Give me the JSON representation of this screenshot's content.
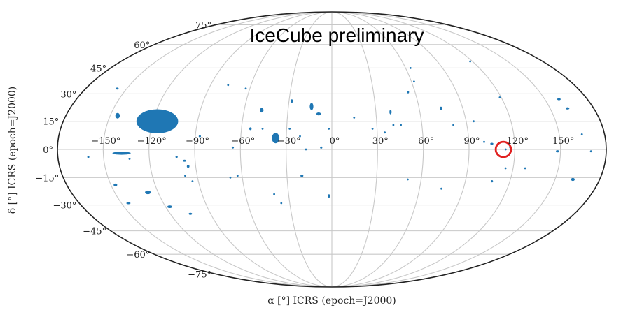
{
  "chart_data": {
    "type": "scatter",
    "projection": "mollweide",
    "title": "IceCube preliminary",
    "xlabel": "α [°] ICRS (epoch=J2000)",
    "ylabel": "δ [°] ICRS (epoch=J2000)",
    "xlim": [
      -180,
      180
    ],
    "ylim": [
      -90,
      90
    ],
    "grid": true,
    "x_ticks": [
      -150,
      -120,
      -90,
      -60,
      -30,
      0,
      30,
      60,
      90,
      120,
      150
    ],
    "y_ticks": [
      -75,
      -60,
      -45,
      -30,
      -15,
      0,
      15,
      30,
      45,
      60,
      75
    ],
    "x_tick_labels": [
      "−150°",
      "−120°",
      "−90°",
      "−60°",
      "−30°",
      "0°",
      "30°",
      "60°",
      "90°",
      "120°",
      "150°"
    ],
    "y_tick_labels": [
      "−75°",
      "−60°",
      "−45°",
      "−30°",
      "−15°",
      "0°",
      "15°",
      "30°",
      "45°",
      "60°",
      "75°"
    ],
    "colors": {
      "region": "#1f77b4",
      "highlight": "#e02020",
      "grid": "#c8c8c8",
      "frame": "#222222"
    },
    "regions": [
      {
        "ra": -117,
        "dec": 15,
        "w": 28,
        "h": 13
      },
      {
        "ra": -145,
        "dec": 18,
        "w": 3,
        "h": 3
      },
      {
        "ra": -138,
        "dec": -2,
        "w": 12,
        "h": 1.6
      },
      {
        "ra": -157,
        "dec": 33,
        "w": 2,
        "h": 1
      },
      {
        "ra": -160,
        "dec": -4,
        "w": 1.4,
        "h": 1.2
      },
      {
        "ra": -147,
        "dec": -19,
        "w": 2.5,
        "h": 1.5
      },
      {
        "ra": -145,
        "dec": -29,
        "w": 3,
        "h": 1.2
      },
      {
        "ra": -127,
        "dec": -23,
        "w": 4,
        "h": 2
      },
      {
        "ra": -117,
        "dec": -31,
        "w": 3.5,
        "h": 1.5
      },
      {
        "ra": -105,
        "dec": -35,
        "w": 2.5,
        "h": 1
      },
      {
        "ra": -133,
        "dec": -5,
        "w": 1.2,
        "h": 1
      },
      {
        "ra": -102,
        "dec": -4,
        "w": 1.5,
        "h": 1
      },
      {
        "ra": -97,
        "dec": -6,
        "w": 2,
        "h": 1
      },
      {
        "ra": -95,
        "dec": -9,
        "w": 1.8,
        "h": 1.5
      },
      {
        "ra": -98,
        "dec": -14,
        "w": 1.2,
        "h": 0.8
      },
      {
        "ra": -94,
        "dec": -17,
        "w": 1.2,
        "h": 1
      },
      {
        "ra": -87,
        "dec": 7,
        "w": 1.5,
        "h": 1
      },
      {
        "ra": -65,
        "dec": 1,
        "w": 1.5,
        "h": 0.8
      },
      {
        "ra": -77,
        "dec": 35,
        "w": 1,
        "h": 0.8
      },
      {
        "ra": -63,
        "dec": 33,
        "w": 1,
        "h": 0.8
      },
      {
        "ra": -48,
        "dec": 21,
        "w": 2.5,
        "h": 2.5
      },
      {
        "ra": -54,
        "dec": 11,
        "w": 1.6,
        "h": 1.5
      },
      {
        "ra": -46,
        "dec": 11,
        "w": 1,
        "h": 1
      },
      {
        "ra": -37,
        "dec": 6,
        "w": 5,
        "h": 5.5
      },
      {
        "ra": -28,
        "dec": 26,
        "w": 1.5,
        "h": 2
      },
      {
        "ra": -28,
        "dec": 11,
        "w": 1,
        "h": 0.8
      },
      {
        "ra": -21,
        "dec": 7,
        "w": 1,
        "h": 0.8
      },
      {
        "ra": -14,
        "dec": 23,
        "w": 2.5,
        "h": 4
      },
      {
        "ra": -9,
        "dec": 19,
        "w": 3,
        "h": 1.6
      },
      {
        "ra": -7,
        "dec": 1,
        "w": 1.5,
        "h": 1.2
      },
      {
        "ra": -17,
        "dec": 0,
        "w": 0.8,
        "h": 0.8
      },
      {
        "ra": -20,
        "dec": -14,
        "w": 2,
        "h": 1.2
      },
      {
        "ra": -36,
        "dec": -29,
        "w": 0.8,
        "h": 0.8
      },
      {
        "ra": -40,
        "dec": -24,
        "w": 0.8,
        "h": 0.8
      },
      {
        "ra": -63,
        "dec": -14,
        "w": 1.2,
        "h": 0.8
      },
      {
        "ra": -2,
        "dec": -25,
        "w": 1.5,
        "h": 2
      },
      {
        "ra": 15,
        "dec": 17,
        "w": 0.8,
        "h": 0.8
      },
      {
        "ra": 27,
        "dec": 11,
        "w": 1,
        "h": 0.8
      },
      {
        "ra": 35,
        "dec": 9,
        "w": 0.8,
        "h": 0.8
      },
      {
        "ra": 40,
        "dec": 20,
        "w": 1.5,
        "h": 2.5
      },
      {
        "ra": 41,
        "dec": 13,
        "w": 1,
        "h": 0.8
      },
      {
        "ra": 46,
        "dec": 13,
        "w": 1.2,
        "h": 0.8
      },
      {
        "ra": 55,
        "dec": 31,
        "w": 1,
        "h": 1.5
      },
      {
        "ra": 62,
        "dec": 37,
        "w": 0.8,
        "h": 0.8
      },
      {
        "ra": 75,
        "dec": 22,
        "w": 1.8,
        "h": 1.8
      },
      {
        "ra": 81,
        "dec": 13,
        "w": 0.8,
        "h": 0.8
      },
      {
        "ra": 95,
        "dec": 15,
        "w": 0.8,
        "h": 1
      },
      {
        "ra": 105,
        "dec": 3,
        "w": 2,
        "h": 0.8
      },
      {
        "ra": 100,
        "dec": 4,
        "w": 0.8,
        "h": 0.8
      },
      {
        "ra": 114,
        "dec": 0,
        "w": 1.2,
        "h": 1
      },
      {
        "ra": 117,
        "dec": 1,
        "w": 0.6,
        "h": 0.6
      },
      {
        "ra": 115,
        "dec": -10,
        "w": 0.5,
        "h": 0.5
      },
      {
        "ra": 108,
        "dec": -17,
        "w": 1.2,
        "h": 1.2
      },
      {
        "ra": 128,
        "dec": -10,
        "w": 0.5,
        "h": 0.5
      },
      {
        "ra": 119,
        "dec": 28,
        "w": 0.8,
        "h": 0.8
      },
      {
        "ra": 118,
        "dec": 49,
        "w": 0.8,
        "h": 0.5
      },
      {
        "ra": 51,
        "dec": -16,
        "w": 1.2,
        "h": 0.8
      },
      {
        "ra": 75,
        "dec": -21,
        "w": 1,
        "h": 0.8
      },
      {
        "ra": 64,
        "dec": 45,
        "w": 0.8,
        "h": 0.8
      },
      {
        "ra": 148,
        "dec": -1,
        "w": 2,
        "h": 1.2
      },
      {
        "ra": 160,
        "dec": 27,
        "w": 2.5,
        "h": 1.2
      },
      {
        "ra": 162,
        "dec": 22,
        "w": 2.5,
        "h": 1.2
      },
      {
        "ra": 165,
        "dec": 8,
        "w": 1.2,
        "h": 1
      },
      {
        "ra": 162,
        "dec": -16,
        "w": 2.5,
        "h": 1.6
      },
      {
        "ra": 170,
        "dec": -1,
        "w": 1,
        "h": 0.8
      },
      {
        "ra": -68,
        "dec": -15,
        "w": 0.6,
        "h": 0.6
      },
      {
        "ra": -2,
        "dec": 11,
        "w": 0.6,
        "h": 0.6
      }
    ],
    "highlight": {
      "ra": 112.5,
      "dec": 0,
      "radius_deg": 5,
      "shape": "circle"
    }
  }
}
